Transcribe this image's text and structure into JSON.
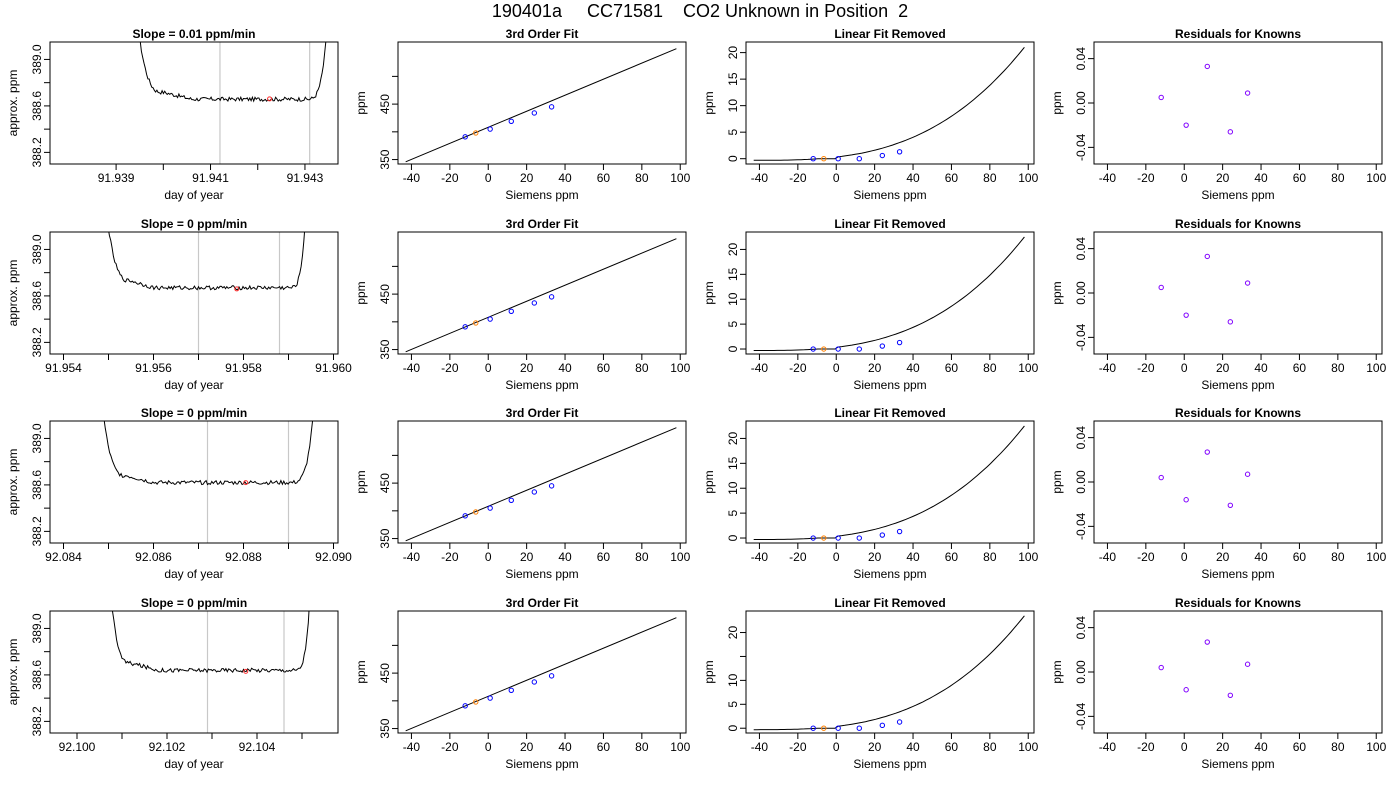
{
  "page": {
    "title": "190401a     CC71581    CO2 Unknown in Position  2"
  },
  "styles": {
    "trace_color": "#000000",
    "known_point_color": "#0000ff",
    "unknown_point_color": "#ff8000",
    "residual_point_color": "#8000ff",
    "window_line_color": "#c8c8c8",
    "slope_point_color": "#ff3030"
  },
  "chart_data": [
    {
      "type": "line",
      "row": 0,
      "col": 0,
      "title": "Slope =  0.01  ppm/min",
      "xlabel": "day of year",
      "ylabel": "approx. ppm",
      "xlim": [
        91.9376,
        91.9437
      ],
      "ylim": [
        388.1,
        389.15
      ],
      "xticks": [
        91.939,
        91.941,
        91.943
      ],
      "xtick_labels": [
        "91.939",
        "91.941",
        "91.943"
      ],
      "xticks_minor": [
        91.94,
        91.942
      ],
      "yticks": [
        388.2,
        388.6,
        389.0
      ],
      "ytick_labels": [
        "388.2",
        "388.6",
        "389.0"
      ],
      "yticks_minor": [
        388.4,
        388.8
      ],
      "baseline": 388.658,
      "x": [
        91.9394,
        91.94,
        91.9406,
        91.9412,
        91.9418,
        91.9424,
        91.943,
        91.9435
      ],
      "y": [
        389.15,
        388.7,
        388.66,
        388.65,
        388.66,
        388.65,
        388.65,
        389.15
      ],
      "windows": [
        91.9412,
        91.9431
      ],
      "slope_point": [
        91.94225,
        388.66
      ]
    },
    {
      "type": "scatter",
      "row": 0,
      "col": 1,
      "title": "3rd Order Fit",
      "xlabel": "Siemens ppm",
      "ylabel": "ppm",
      "xlim": [
        -47,
        103
      ],
      "ylim": [
        342,
        562
      ],
      "xticks": [
        -40,
        -20,
        0,
        20,
        40,
        60,
        80,
        100
      ],
      "xtick_labels": [
        "-40",
        "-20",
        "0",
        "20",
        "40",
        "60",
        "80",
        "100"
      ],
      "yticks": [
        350,
        450
      ],
      "ytick_labels": [
        "350",
        "450"
      ],
      "yticks_minor": [
        400,
        500
      ],
      "fit_line": {
        "x": [
          -43,
          98
        ],
        "y": [
          346,
          550
        ]
      },
      "knowns": {
        "x": [
          -12,
          1,
          12,
          24,
          33
        ],
        "y": [
          391,
          405,
          419,
          434,
          445
        ]
      },
      "unknown": {
        "x": [
          -6.5
        ],
        "y": [
          398
        ]
      }
    },
    {
      "type": "scatter",
      "row": 0,
      "col": 2,
      "title": "Linear Fit Removed",
      "xlabel": "Siemens ppm",
      "ylabel": "ppm",
      "xlim": [
        -47,
        103
      ],
      "ylim": [
        -1,
        22
      ],
      "xticks": [
        -40,
        -20,
        0,
        20,
        40,
        60,
        80,
        100
      ],
      "xtick_labels": [
        "-40",
        "-20",
        "0",
        "20",
        "40",
        "60",
        "80",
        "100"
      ],
      "yticks": [
        0,
        5,
        10,
        15,
        20
      ],
      "ytick_labels": [
        "0",
        "5",
        "10",
        "15",
        "20"
      ],
      "curve": {
        "type": "poly3",
        "x0": 0,
        "a": 0.0041,
        "x_range": [
          -43,
          98
        ],
        "y_base": -0.3,
        "y_end": 21.0
      },
      "knowns": {
        "x": [
          -12,
          1,
          12,
          24,
          33
        ],
        "y": [
          0,
          0,
          0,
          0.6,
          1.3
        ]
      },
      "unknown": {
        "x": [
          -6.5
        ],
        "y": [
          0
        ]
      }
    },
    {
      "type": "scatter",
      "row": 0,
      "col": 3,
      "title": "Residuals for Knowns",
      "xlabel": "Siemens ppm",
      "ylabel": "ppm",
      "xlim": [
        -47,
        103
      ],
      "ylim": [
        -0.055,
        0.055
      ],
      "xticks": [
        -40,
        -20,
        0,
        20,
        40,
        60,
        80,
        100
      ],
      "xtick_labels": [
        "-40",
        "-20",
        "0",
        "20",
        "40",
        "60",
        "80",
        "100"
      ],
      "yticks": [
        -0.04,
        0.0,
        0.04
      ],
      "ytick_labels": [
        "-0.04",
        "0.00",
        "0.04"
      ],
      "residuals": {
        "x": [
          -12,
          1,
          12,
          24,
          33
        ],
        "y": [
          0.005,
          -0.02,
          0.033,
          -0.026,
          0.009
        ]
      }
    },
    {
      "type": "line",
      "row": 1,
      "col": 0,
      "title": "Slope =  0  ppm/min",
      "xlabel": "day of year",
      "ylabel": "approx. ppm",
      "xlim": [
        91.9537,
        91.9601
      ],
      "ylim": [
        388.1,
        389.15
      ],
      "xticks": [
        91.954,
        91.956,
        91.958,
        91.96
      ],
      "xtick_labels": [
        "91.954",
        "91.956",
        "91.958",
        "91.960"
      ],
      "xticks_minor": [
        91.955,
        91.957,
        91.959
      ],
      "yticks": [
        388.2,
        388.6,
        389.0
      ],
      "ytick_labels": [
        "388.2",
        "388.6",
        "389.0"
      ],
      "yticks_minor": [
        388.4,
        388.8
      ],
      "baseline": 388.67,
      "x": [
        91.9549,
        91.9555,
        91.956,
        91.957,
        91.958,
        91.959,
        91.9594
      ],
      "y": [
        389.15,
        388.75,
        388.68,
        388.67,
        388.66,
        388.66,
        389.15
      ],
      "windows": [
        91.957,
        91.9588
      ],
      "slope_point": [
        91.95785,
        388.66
      ]
    },
    {
      "type": "scatter",
      "row": 1,
      "col": 1,
      "title": "3rd Order Fit",
      "xlabel": "Siemens ppm",
      "ylabel": "ppm",
      "xlim": [
        -47,
        103
      ],
      "ylim": [
        342,
        562
      ],
      "xticks": [
        -40,
        -20,
        0,
        20,
        40,
        60,
        80,
        100
      ],
      "xtick_labels": [
        "-40",
        "-20",
        "0",
        "20",
        "40",
        "60",
        "80",
        "100"
      ],
      "yticks": [
        350,
        450
      ],
      "ytick_labels": [
        "350",
        "450"
      ],
      "yticks_minor": [
        400,
        500
      ],
      "fit_line": {
        "x": [
          -43,
          98
        ],
        "y": [
          346,
          550
        ]
      },
      "knowns": {
        "x": [
          -12,
          1,
          12,
          24,
          33
        ],
        "y": [
          391,
          405,
          419,
          434,
          445
        ]
      },
      "unknown": {
        "x": [
          -6.5
        ],
        "y": [
          398
        ]
      }
    },
    {
      "type": "scatter",
      "row": 1,
      "col": 2,
      "title": "Linear Fit Removed",
      "xlabel": "Siemens ppm",
      "ylabel": "ppm",
      "xlim": [
        -47,
        103
      ],
      "ylim": [
        -1,
        23.5
      ],
      "xticks": [
        -40,
        -20,
        0,
        20,
        40,
        60,
        80,
        100
      ],
      "xtick_labels": [
        "-40",
        "-20",
        "0",
        "20",
        "40",
        "60",
        "80",
        "100"
      ],
      "yticks": [
        0,
        5,
        10,
        15,
        20
      ],
      "ytick_labels": [
        "0",
        "5",
        "10",
        "15",
        "20"
      ],
      "curve": {
        "type": "poly3",
        "x0": 0,
        "a": 0.0041,
        "x_range": [
          -43,
          98
        ],
        "y_base": -0.3,
        "y_end": 22.5
      },
      "knowns": {
        "x": [
          -12,
          1,
          12,
          24,
          33
        ],
        "y": [
          0,
          0,
          0,
          0.6,
          1.3
        ]
      },
      "unknown": {
        "x": [
          -6.5
        ],
        "y": [
          0
        ]
      }
    },
    {
      "type": "scatter",
      "row": 1,
      "col": 3,
      "title": "Residuals for Knowns",
      "xlabel": "Siemens ppm",
      "ylabel": "ppm",
      "xlim": [
        -47,
        103
      ],
      "ylim": [
        -0.055,
        0.055
      ],
      "xticks": [
        -40,
        -20,
        0,
        20,
        40,
        60,
        80,
        100
      ],
      "xtick_labels": [
        "-40",
        "-20",
        "0",
        "20",
        "40",
        "60",
        "80",
        "100"
      ],
      "yticks": [
        -0.04,
        0.0,
        0.04
      ],
      "ytick_labels": [
        "-0.04",
        "0.00",
        "0.04"
      ],
      "residuals": {
        "x": [
          -12,
          1,
          12,
          24,
          33
        ],
        "y": [
          0.005,
          -0.02,
          0.033,
          -0.026,
          0.009
        ]
      }
    },
    {
      "type": "line",
      "row": 2,
      "col": 0,
      "title": "Slope =  0  ppm/min",
      "xlabel": "day of year",
      "ylabel": "approx. ppm",
      "xlim": [
        92.0837,
        92.0901
      ],
      "ylim": [
        388.1,
        389.15
      ],
      "xticks": [
        92.084,
        92.086,
        92.088,
        92.09
      ],
      "xtick_labels": [
        "92.084",
        "92.086",
        "92.088",
        "92.090"
      ],
      "xticks_minor": [
        92.085,
        92.087,
        92.089
      ],
      "yticks": [
        388.2,
        388.6,
        389.0
      ],
      "ytick_labels": [
        "388.2",
        "388.6",
        "389.0"
      ],
      "yticks_minor": [
        388.4,
        388.8
      ],
      "baseline": 388.62,
      "x": [
        92.0848,
        92.0854,
        92.086,
        92.087,
        92.088,
        92.089,
        92.0896
      ],
      "y": [
        389.15,
        388.72,
        388.64,
        388.62,
        388.62,
        388.62,
        389.15
      ],
      "windows": [
        92.0872,
        92.089
      ],
      "slope_point": [
        92.08805,
        388.62
      ]
    },
    {
      "type": "scatter",
      "row": 2,
      "col": 1,
      "title": "3rd Order Fit",
      "xlabel": "Siemens ppm",
      "ylabel": "ppm",
      "xlim": [
        -47,
        103
      ],
      "ylim": [
        342,
        562
      ],
      "xticks": [
        -40,
        -20,
        0,
        20,
        40,
        60,
        80,
        100
      ],
      "xtick_labels": [
        "-40",
        "-20",
        "0",
        "20",
        "40",
        "60",
        "80",
        "100"
      ],
      "yticks": [
        350,
        450
      ],
      "ytick_labels": [
        "350",
        "450"
      ],
      "yticks_minor": [
        400,
        500
      ],
      "fit_line": {
        "x": [
          -43,
          98
        ],
        "y": [
          346,
          550
        ]
      },
      "knowns": {
        "x": [
          -12,
          1,
          12,
          24,
          33
        ],
        "y": [
          391,
          405,
          419,
          434,
          445
        ]
      },
      "unknown": {
        "x": [
          -6.5
        ],
        "y": [
          398
        ]
      }
    },
    {
      "type": "scatter",
      "row": 2,
      "col": 2,
      "title": "Linear Fit Removed",
      "xlabel": "Siemens ppm",
      "ylabel": "ppm",
      "xlim": [
        -47,
        103
      ],
      "ylim": [
        -1,
        23.5
      ],
      "xticks": [
        -40,
        -20,
        0,
        20,
        40,
        60,
        80,
        100
      ],
      "xtick_labels": [
        "-40",
        "-20",
        "0",
        "20",
        "40",
        "60",
        "80",
        "100"
      ],
      "yticks": [
        0,
        5,
        10,
        15,
        20
      ],
      "ytick_labels": [
        "0",
        "5",
        "10",
        "15",
        "20"
      ],
      "curve": {
        "type": "poly3",
        "x0": 0,
        "a": 0.0041,
        "x_range": [
          -43,
          98
        ],
        "y_base": -0.3,
        "y_end": 22.5
      },
      "knowns": {
        "x": [
          -12,
          1,
          12,
          24,
          33
        ],
        "y": [
          0,
          0,
          0,
          0.6,
          1.3
        ]
      },
      "unknown": {
        "x": [
          -6.5
        ],
        "y": [
          0
        ]
      }
    },
    {
      "type": "scatter",
      "row": 2,
      "col": 3,
      "title": "Residuals for Knowns",
      "xlabel": "Siemens ppm",
      "ylabel": "ppm",
      "xlim": [
        -47,
        103
      ],
      "ylim": [
        -0.055,
        0.055
      ],
      "xticks": [
        -40,
        -20,
        0,
        20,
        40,
        60,
        80,
        100
      ],
      "xtick_labels": [
        "-40",
        "-20",
        "0",
        "20",
        "40",
        "60",
        "80",
        "100"
      ],
      "yticks": [
        -0.04,
        0.0,
        0.04
      ],
      "ytick_labels": [
        "-0.04",
        "0.00",
        "0.04"
      ],
      "residuals": {
        "x": [
          -12,
          1,
          12,
          24,
          33
        ],
        "y": [
          0.004,
          -0.016,
          0.027,
          -0.021,
          0.007
        ]
      }
    },
    {
      "type": "line",
      "row": 3,
      "col": 0,
      "title": "Slope =  0  ppm/min",
      "xlabel": "day of year",
      "ylabel": "approx. ppm",
      "xlim": [
        92.0994,
        92.1058
      ],
      "ylim": [
        388.1,
        389.15
      ],
      "xticks": [
        92.1,
        92.102,
        92.104
      ],
      "xtick_labels": [
        "92.100",
        "92.102",
        "92.104"
      ],
      "xticks_minor": [
        92.101,
        92.103,
        92.105
      ],
      "yticks": [
        388.2,
        388.6,
        389.0
      ],
      "ytick_labels": [
        "388.2",
        "388.6",
        "389.0"
      ],
      "yticks_minor": [
        388.4,
        388.8
      ],
      "baseline": 388.64,
      "x": [
        92.1007,
        92.1012,
        92.1018,
        92.1028,
        92.1038,
        92.1048,
        92.1052
      ],
      "y": [
        389.15,
        388.72,
        388.66,
        388.64,
        388.63,
        388.64,
        389.15
      ],
      "windows": [
        92.1029,
        92.1046
      ],
      "slope_point": [
        92.10375,
        388.63
      ]
    },
    {
      "type": "scatter",
      "row": 3,
      "col": 1,
      "title": "3rd Order Fit",
      "xlabel": "Siemens ppm",
      "ylabel": "ppm",
      "xlim": [
        -47,
        103
      ],
      "ylim": [
        342,
        562
      ],
      "xticks": [
        -40,
        -20,
        0,
        20,
        40,
        60,
        80,
        100
      ],
      "xtick_labels": [
        "-40",
        "-20",
        "0",
        "20",
        "40",
        "60",
        "80",
        "100"
      ],
      "yticks": [
        350,
        450
      ],
      "ytick_labels": [
        "350",
        "450"
      ],
      "yticks_minor": [
        400,
        500
      ],
      "fit_line": {
        "x": [
          -43,
          98
        ],
        "y": [
          346,
          550
        ]
      },
      "knowns": {
        "x": [
          -12,
          1,
          12,
          24,
          33
        ],
        "y": [
          391,
          405,
          419,
          434,
          445
        ]
      },
      "unknown": {
        "x": [
          -6.5
        ],
        "y": [
          398
        ]
      }
    },
    {
      "type": "scatter",
      "row": 3,
      "col": 2,
      "title": "Linear Fit Removed",
      "xlabel": "Siemens ppm",
      "ylabel": "ppm",
      "xlim": [
        -47,
        103
      ],
      "ylim": [
        -1,
        24.5
      ],
      "xticks": [
        -40,
        -20,
        0,
        20,
        40,
        60,
        80,
        100
      ],
      "xtick_labels": [
        "-40",
        "-20",
        "0",
        "20",
        "40",
        "60",
        "80",
        "100"
      ],
      "yticks": [
        0,
        5,
        10,
        20
      ],
      "ytick_labels": [
        "0",
        "5",
        "10",
        "20"
      ],
      "yticks_minor": [
        15
      ],
      "curve": {
        "type": "poly3",
        "x0": 0,
        "a": 0.0041,
        "x_range": [
          -43,
          98
        ],
        "y_base": -0.3,
        "y_end": 23.5
      },
      "knowns": {
        "x": [
          -12,
          1,
          12,
          24,
          33
        ],
        "y": [
          0,
          0,
          0,
          0.6,
          1.3
        ]
      },
      "unknown": {
        "x": [
          -6.5
        ],
        "y": [
          0
        ]
      }
    },
    {
      "type": "scatter",
      "row": 3,
      "col": 3,
      "title": "Residuals for Knowns",
      "xlabel": "Siemens ppm",
      "ylabel": "ppm",
      "xlim": [
        -47,
        103
      ],
      "ylim": [
        -0.055,
        0.055
      ],
      "xticks": [
        -40,
        -20,
        0,
        20,
        40,
        60,
        80,
        100
      ],
      "xtick_labels": [
        "-40",
        "-20",
        "0",
        "20",
        "40",
        "60",
        "80",
        "100"
      ],
      "yticks": [
        -0.04,
        0.0,
        0.04
      ],
      "ytick_labels": [
        "-0.04",
        "0.00",
        "0.04"
      ],
      "residuals": {
        "x": [
          -12,
          1,
          12,
          24,
          33
        ],
        "y": [
          0.004,
          -0.016,
          0.027,
          -0.021,
          0.007
        ]
      }
    }
  ]
}
